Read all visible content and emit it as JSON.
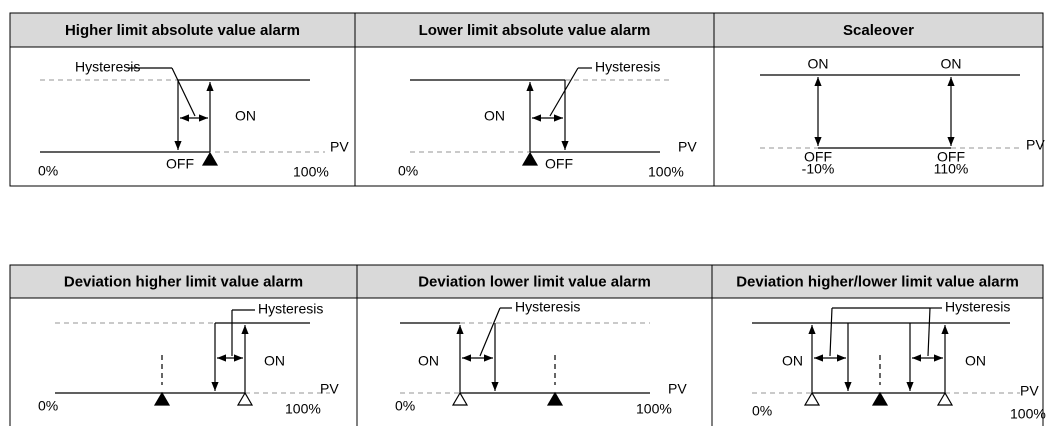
{
  "panels": [
    {
      "title": "Higher limit absolute value alarm",
      "labels": [
        "Hysteresis",
        "ON",
        "OFF",
        "PV",
        "0%",
        "100%"
      ]
    },
    {
      "title": "Lower limit absolute value alarm",
      "labels": [
        "Hysteresis",
        "ON",
        "OFF",
        "PV",
        "0%",
        "100%"
      ]
    },
    {
      "title": "Scaleover",
      "labels": [
        "ON",
        "ON",
        "OFF",
        "-10%",
        "OFF",
        "110%",
        "PV"
      ]
    },
    {
      "title": "Deviation higher limit value alarm",
      "labels": [
        "Hysteresis",
        "ON",
        "PV",
        "0%",
        "100%"
      ]
    },
    {
      "title": "Deviation lower limit value alarm",
      "labels": [
        "Hysteresis",
        "ON",
        "PV",
        "0%",
        "100%"
      ]
    },
    {
      "title": "Deviation higher/lower limit value alarm",
      "labels": [
        "Hysteresis",
        "ON",
        "ON",
        "PV",
        "0%",
        "100%"
      ]
    }
  ]
}
